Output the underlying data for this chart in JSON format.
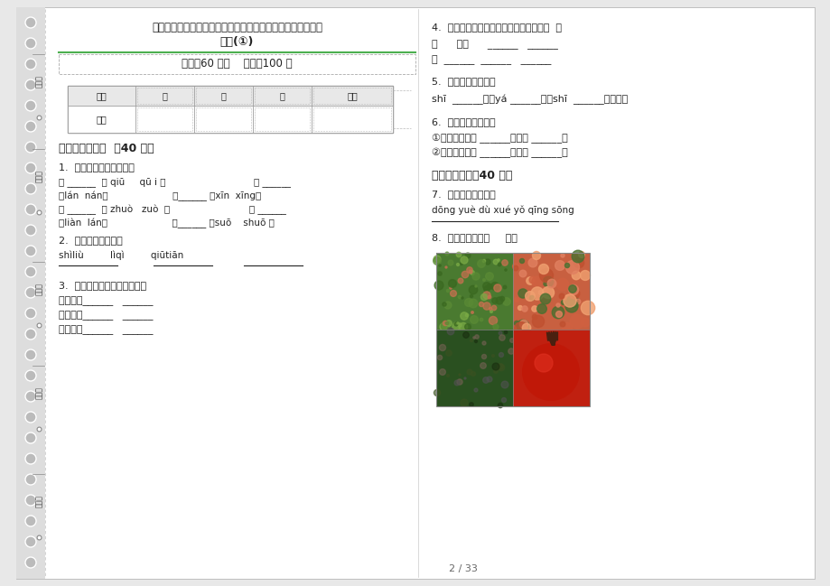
{
  "bg_color": "#e8e8e8",
  "page_bg": "#ffffff",
  "title1": "人教版一年级强化训练突破上学期小学语文四单元真题模拟试",
  "title2": "卷卷(①)",
  "time_info": "时间：60 分钟    满分：100 分",
  "table_headers": [
    "题号",
    "一",
    "二",
    "三",
    "总分"
  ],
  "table_row": [
    "得分",
    "",
    "",
    "",
    ""
  ],
  "section1_title": "一、积累与运用  （40 分）",
  "q1_title": "1.  选择正确的读音下面画",
  "q1_line1": "秋 ______  （ qiū     qū i ）                              蓝 ______",
  "q1_line2": "（lán  nán）                      星______ （xīn  xīng）",
  "q1_line3": "坐 ______  （ zhuò   zuò  ）                           莲 ______",
  "q1_line4": "（liàn  lán）                      说______ （suō    shuō ）",
  "q2_title": "2.  我会读，还会写。",
  "q2_pinyin": "shìliù         lìqì         qiūtiān",
  "q2_lines": "______         ______         ______",
  "q3_title": "3.  加一加，成新字，再组词。",
  "q3_line1": "日＋土＝______   ______",
  "q3_line2": "丁＋囗＝______   ______",
  "q3_line3": "囗＋十＝______   ______",
  "section2_title": "二、组词练习（40 分）",
  "q4_title": "4.  一字组多词。（不会写的字用拼音代替  ）",
  "q4_line1": "天      天空      ______   ______",
  "q4_line2": "里  ______  ______   ______",
  "q5_title": "5.  读拼音，写句子。",
  "q5_line": "shī  ______榴的yá ______齿就shī  ______它的子。",
  "q6_title": "6.  把句子补充完整。",
  "q6_line1": "①弯弯的月儿像 ______，还像 ______。",
  "q6_line2": "②红红的太阳像 ______，还像 ______。",
  "q7_title": "7.  读拼音，写句子。",
  "q7_pinyin": "dōng yuè dù xué yǒ qīng sōng",
  "q7_line": "______",
  "q8_title": "8.  下面的水果是（     ）。",
  "page_num": "2 / 33",
  "label_kaohao": "考号：",
  "label_kaochang": "考场：",
  "label_xingming": "姓名：",
  "label_banji": "班级：",
  "label_xuexiao": "学校：",
  "green_line_color": "#4CAF50",
  "separator_color": "#bbbbbb",
  "dark_text_color": "#222222",
  "light_text_color": "#666666",
  "table_header_bg": "#e8e8e8",
  "dashed_border_color": "#aaaaaa"
}
